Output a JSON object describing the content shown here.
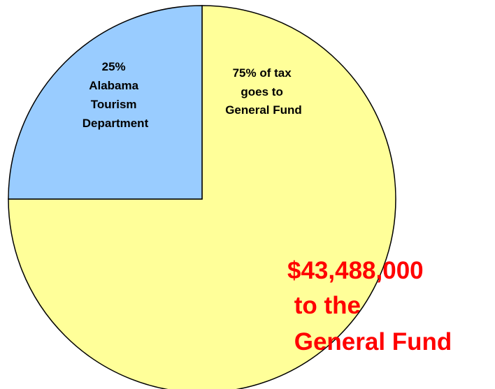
{
  "chart_data": {
    "type": "pie",
    "slices": [
      {
        "value": 75,
        "color": "#ffff99",
        "label_lines": [
          "75% of tax",
          "goes to",
          "General Fund"
        ]
      },
      {
        "value": 25,
        "color": "#99ccff",
        "label_lines": [
          "25%",
          "Alabama",
          "Tourism",
          "Department"
        ]
      }
    ],
    "annotation": {
      "lines": [
        "$43,488,000",
        " to the",
        " General Fund"
      ],
      "color": "#ff0000"
    },
    "slice_border_color": "#000000"
  }
}
